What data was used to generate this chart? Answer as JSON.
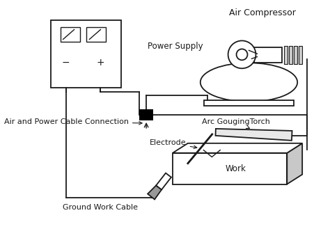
{
  "bg_color": "#ffffff",
  "line_color": "#1a1a1a",
  "labels": {
    "air_compressor": "Air Compressor",
    "power_supply": "Power Supply",
    "cable_connection": "Air and Power Cable Connection",
    "arc_torch": "Arc GougingTorch",
    "electrode": "Electrode",
    "work": "Work",
    "ground_cable": "Ground Work Cable"
  },
  "figsize": [
    4.74,
    3.29
  ],
  "dpi": 100
}
